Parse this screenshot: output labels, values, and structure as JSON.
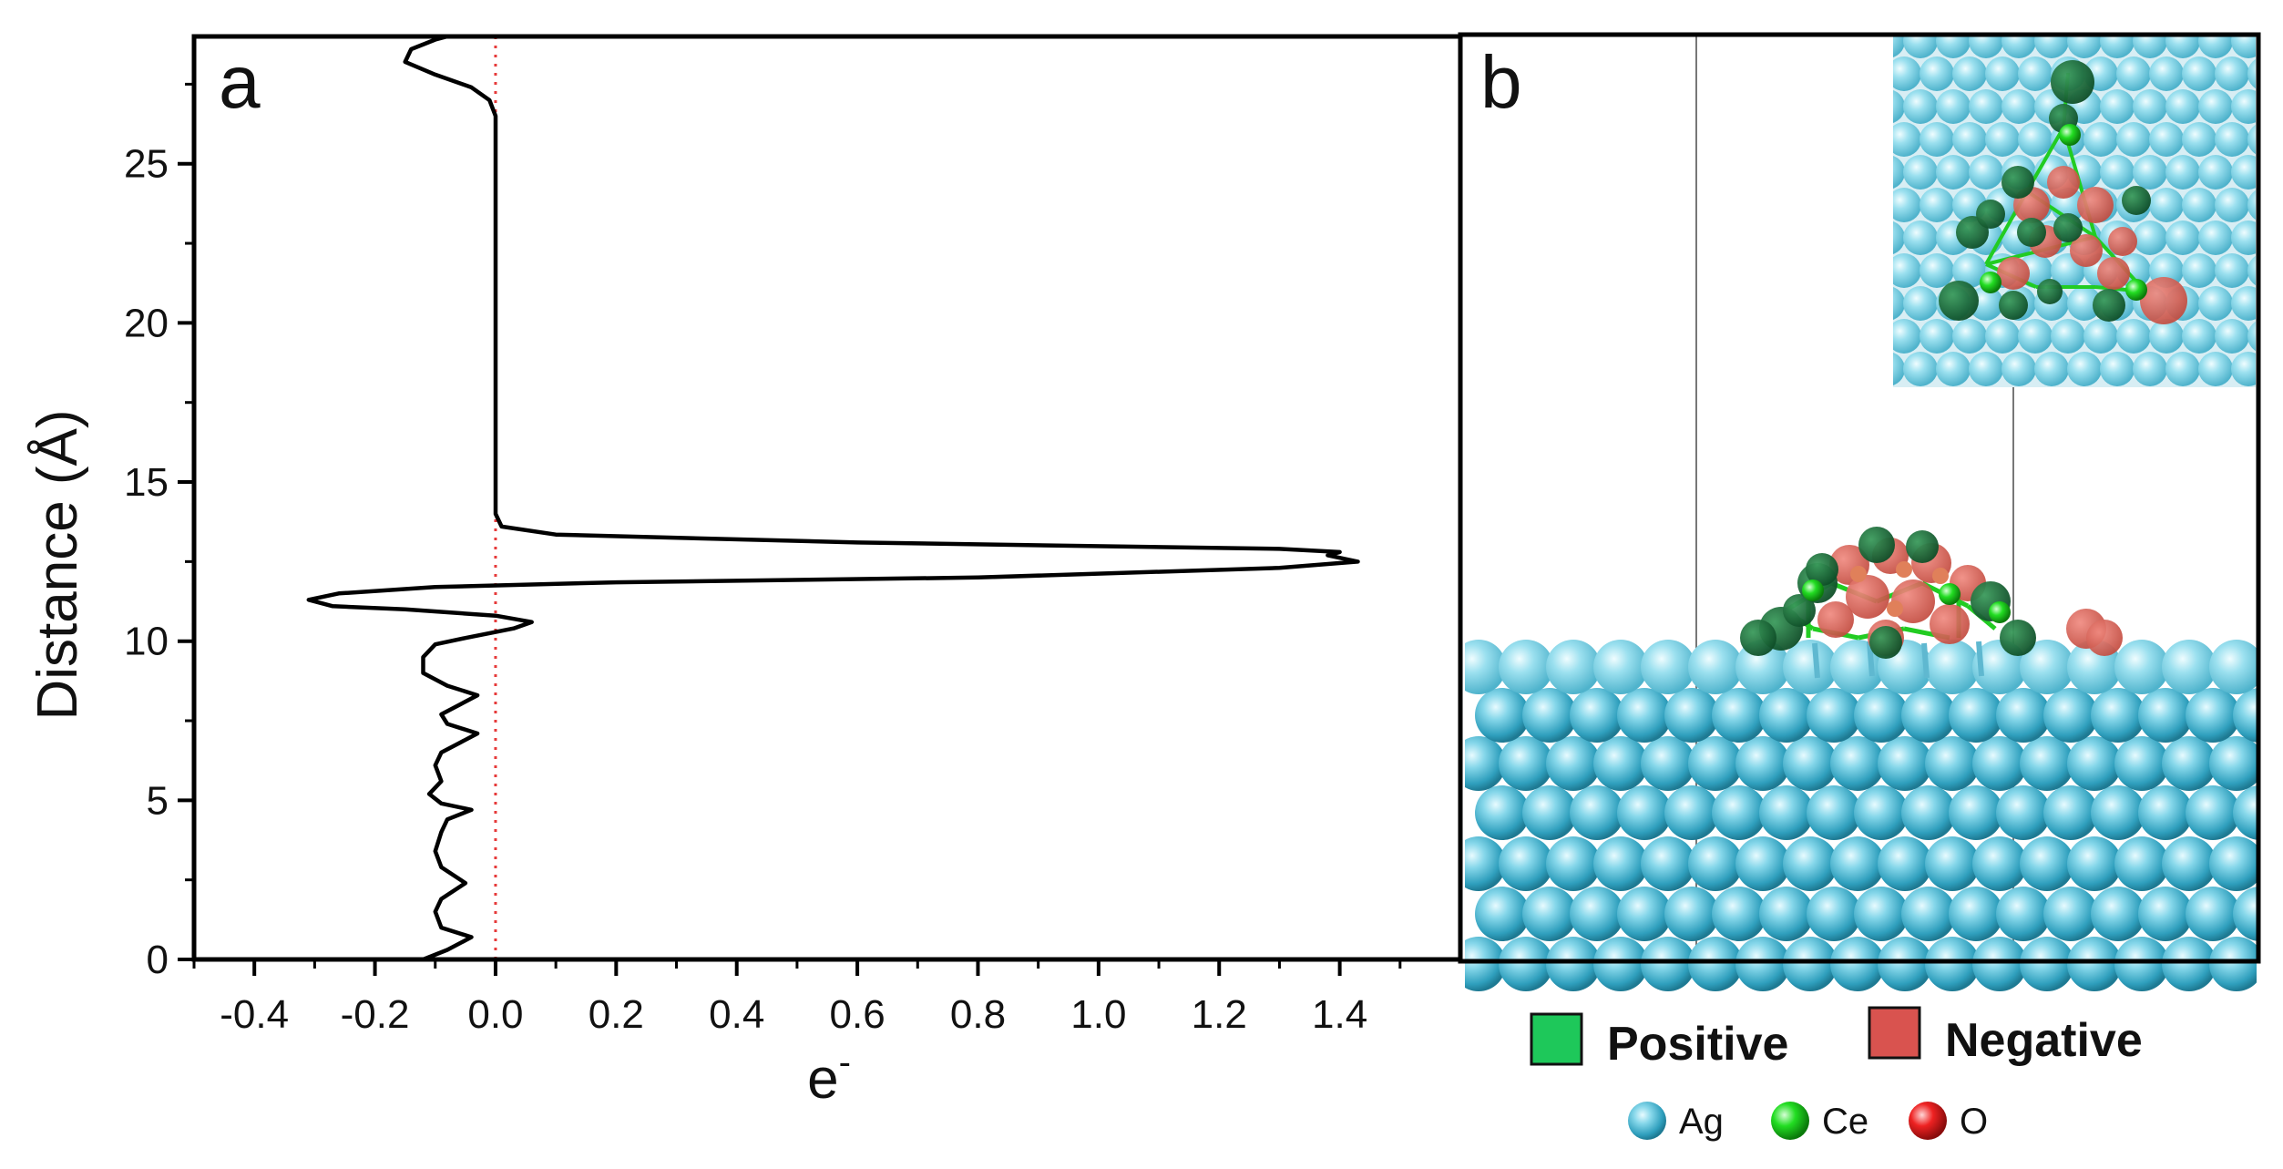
{
  "chart_data": {
    "type": "line",
    "panel_label": "a",
    "xlabel": "e",
    "xlabel_superscript": "-",
    "ylabel": "Distance (Å)",
    "xlim": [
      -0.5,
      1.6
    ],
    "ylim": [
      0,
      29
    ],
    "x_ticks": [
      -0.4,
      -0.2,
      0.0,
      0.2,
      0.4,
      0.6,
      0.8,
      1.0,
      1.2,
      1.4
    ],
    "x_tick_labels": [
      "-0.4",
      "-0.2",
      "0.0",
      "0.2",
      "0.4",
      "0.6",
      "0.8",
      "1.0",
      "1.2",
      "1.4"
    ],
    "y_ticks": [
      0,
      5,
      10,
      15,
      20,
      25
    ],
    "y_tick_labels": [
      "0",
      "5",
      "10",
      "15",
      "20",
      "25"
    ],
    "reference_line": {
      "x": 0.0,
      "style": "dotted",
      "color": "#e63a3a"
    },
    "series": [
      {
        "color": "#000000",
        "points": [
          [
            -0.12,
            0.0
          ],
          [
            -0.08,
            0.3
          ],
          [
            -0.04,
            0.7
          ],
          [
            -0.09,
            1.0
          ],
          [
            -0.1,
            1.5
          ],
          [
            -0.09,
            1.9
          ],
          [
            -0.05,
            2.4
          ],
          [
            -0.09,
            2.9
          ],
          [
            -0.1,
            3.4
          ],
          [
            -0.09,
            4.0
          ],
          [
            -0.08,
            4.4
          ],
          [
            -0.04,
            4.7
          ],
          [
            -0.09,
            4.9
          ],
          [
            -0.11,
            5.2
          ],
          [
            -0.09,
            5.6
          ],
          [
            -0.1,
            6.1
          ],
          [
            -0.09,
            6.5
          ],
          [
            -0.06,
            6.8
          ],
          [
            -0.03,
            7.1
          ],
          [
            -0.08,
            7.4
          ],
          [
            -0.09,
            7.7
          ],
          [
            -0.06,
            8.0
          ],
          [
            -0.03,
            8.3
          ],
          [
            -0.08,
            8.6
          ],
          [
            -0.12,
            9.0
          ],
          [
            -0.12,
            9.5
          ],
          [
            -0.1,
            9.9
          ],
          [
            -0.05,
            10.1
          ],
          [
            0.03,
            10.4
          ],
          [
            0.06,
            10.6
          ],
          [
            0.0,
            10.8
          ],
          [
            -0.15,
            11.0
          ],
          [
            -0.27,
            11.1
          ],
          [
            -0.31,
            11.3
          ],
          [
            -0.26,
            11.5
          ],
          [
            -0.1,
            11.7
          ],
          [
            0.2,
            11.85
          ],
          [
            0.8,
            12.0
          ],
          [
            1.3,
            12.3
          ],
          [
            1.43,
            12.5
          ],
          [
            1.38,
            12.7
          ],
          [
            1.4,
            12.8
          ],
          [
            1.3,
            12.9
          ],
          [
            0.6,
            13.1
          ],
          [
            0.1,
            13.35
          ],
          [
            0.01,
            13.6
          ],
          [
            0.0,
            14.0
          ],
          [
            0.0,
            16.0
          ],
          [
            0.0,
            20.0
          ],
          [
            0.0,
            24.0
          ],
          [
            0.0,
            26.5
          ],
          [
            -0.01,
            27.0
          ],
          [
            -0.04,
            27.4
          ],
          [
            -0.1,
            27.8
          ],
          [
            -0.15,
            28.2
          ],
          [
            -0.14,
            28.6
          ],
          [
            -0.1,
            28.9
          ],
          [
            -0.08,
            29.0
          ]
        ]
      }
    ]
  },
  "panel_b": {
    "label": "b",
    "legend": [
      {
        "label": "Positive",
        "color": "#1ec85a"
      },
      {
        "label": "Negative",
        "color": "#d9534f"
      }
    ],
    "atoms": [
      {
        "label": "Ag",
        "color": "#4fc3dc"
      },
      {
        "label": "Ce",
        "color": "#22dd22"
      },
      {
        "label": "O",
        "color": "#ee2222"
      }
    ]
  }
}
